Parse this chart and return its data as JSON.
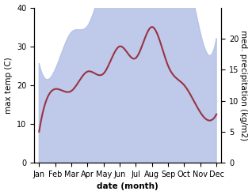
{
  "months": [
    "Jan",
    "Feb",
    "Mar",
    "Apr",
    "May",
    "Jun",
    "Jul",
    "Aug",
    "Sep",
    "Oct",
    "Nov",
    "Dec"
  ],
  "month_x": [
    0,
    1,
    2,
    3,
    4,
    5,
    6,
    7,
    8,
    9,
    10,
    11
  ],
  "max_temp": [
    8.0,
    19.0,
    18.5,
    23.5,
    23.0,
    30.0,
    27.0,
    35.0,
    25.0,
    20.0,
    13.0,
    12.5
  ],
  "precipitation": [
    16.0,
    15.0,
    21.0,
    22.0,
    30.0,
    37.0,
    36.5,
    39.0,
    31.0,
    31.0,
    21.0,
    20.0
  ],
  "temp_color": "#993344",
  "precip_fill_color": "#b8c4e8",
  "xlabel": "date (month)",
  "ylabel_left": "max temp (C)",
  "ylabel_right": "med. precipitation (kg/m2)",
  "ylim_left": [
    0,
    40
  ],
  "ylim_right": [
    0,
    25
  ],
  "yticks_left": [
    0,
    10,
    20,
    30,
    40
  ],
  "yticks_right": [
    0,
    5,
    10,
    15,
    20
  ],
  "background_color": "#ffffff",
  "label_fontsize": 7.5,
  "tick_fontsize": 7.0
}
